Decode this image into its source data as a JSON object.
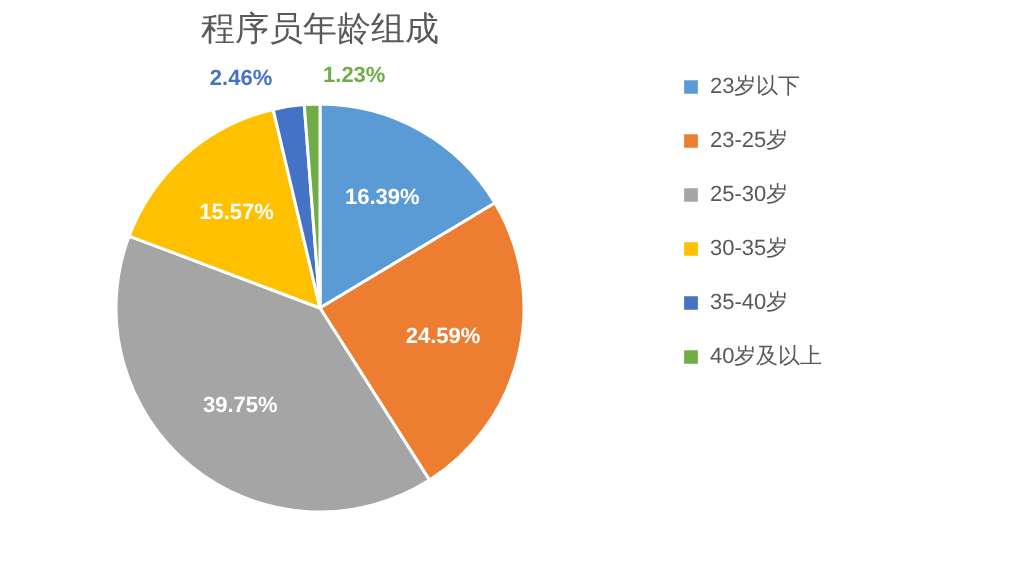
{
  "chart_data": {
    "type": "pie",
    "title": "程序员年龄组成",
    "categories": [
      "23岁以下",
      "23-25岁",
      "25-30岁",
      "30-35岁",
      "35-40岁",
      "40岁及以上"
    ],
    "values": [
      16.39,
      24.59,
      39.75,
      15.57,
      2.46,
      1.23
    ],
    "colors": [
      "#5b9bd5",
      "#ed7d31",
      "#a5a5a5",
      "#ffc000",
      "#4472c4",
      "#70ad47"
    ],
    "value_labels": [
      "16.39%",
      "24.59%",
      "39.75%",
      "15.57%",
      "2.46%",
      "1.23%"
    ],
    "legend": "right"
  }
}
